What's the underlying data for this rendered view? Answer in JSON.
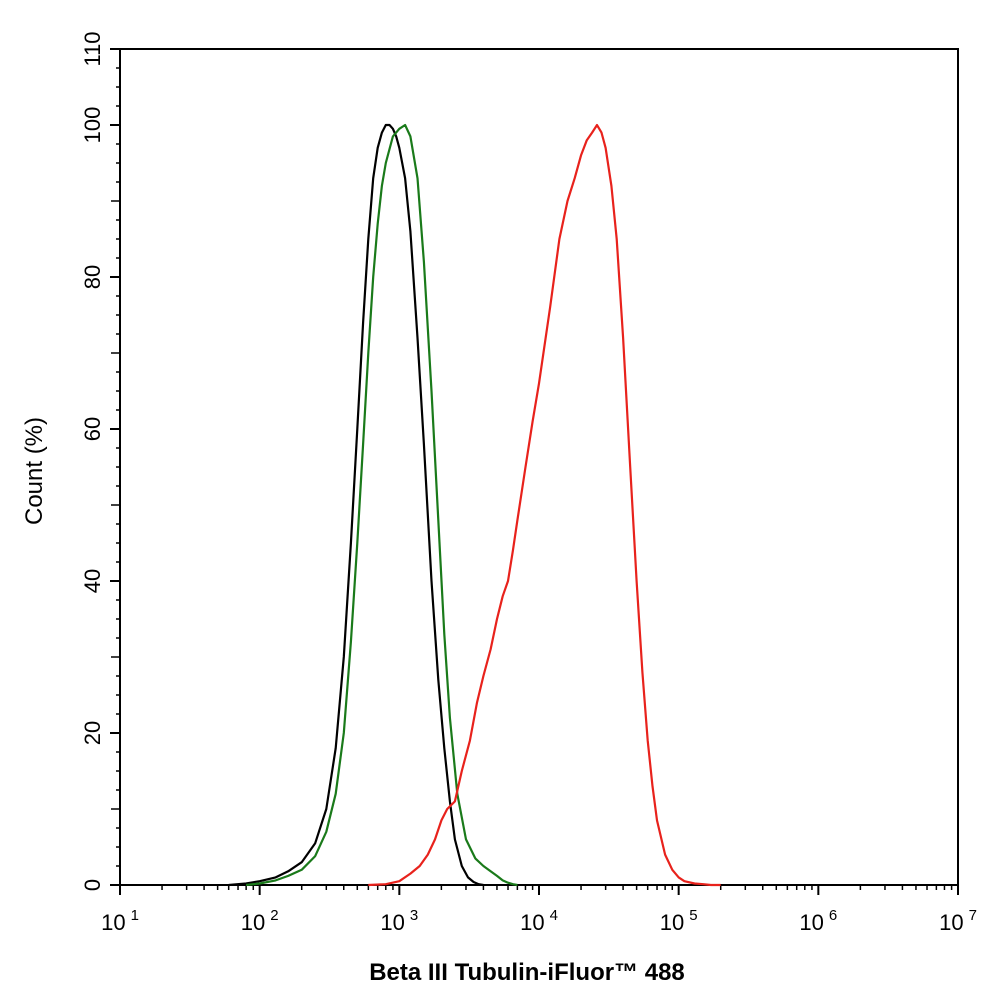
{
  "chart_data": {
    "type": "line",
    "xlabel": "Beta III Tubulin-iFluor™ 488",
    "ylabel": "Count  (%)",
    "x_scale": "log",
    "xlim": [
      10,
      10000000
    ],
    "ylim": [
      0,
      110
    ],
    "x_tick_labels": [
      {
        "base": "10",
        "exp": "1"
      },
      {
        "base": "10",
        "exp": "2"
      },
      {
        "base": "10",
        "exp": "3"
      },
      {
        "base": "10",
        "exp": "4"
      },
      {
        "base": "10",
        "exp": "5"
      },
      {
        "base": "10",
        "exp": "6"
      },
      {
        "base": "10",
        "exp": "7"
      }
    ],
    "y_ticks": [
      0,
      20,
      40,
      60,
      80,
      100,
      110
    ],
    "grid": false,
    "legend": "none",
    "series": [
      {
        "color": "#000000",
        "x": [
          60,
          80,
          100,
          130,
          160,
          200,
          250,
          300,
          350,
          400,
          450,
          500,
          550,
          600,
          650,
          700,
          750,
          800,
          850,
          900,
          950,
          1000,
          1100,
          1200,
          1350,
          1500,
          1700,
          1900,
          2100,
          2300,
          2500,
          2800,
          3100,
          3400,
          3700,
          4000
        ],
        "y": [
          0,
          0.2,
          0.5,
          1,
          1.8,
          3,
          5.5,
          10,
          18,
          30,
          45,
          60,
          74,
          85,
          93,
          97,
          99,
          100,
          100,
          99.5,
          98.5,
          97,
          93,
          86,
          72,
          58,
          40,
          27,
          18,
          11,
          6,
          2.5,
          1,
          0.4,
          0.1,
          0
        ]
      },
      {
        "color": "#1a7a1a",
        "x": [
          80,
          100,
          130,
          160,
          200,
          250,
          300,
          350,
          400,
          450,
          500,
          550,
          600,
          650,
          700,
          750,
          800,
          900,
          1000,
          1100,
          1200,
          1350,
          1500,
          1700,
          1900,
          2100,
          2300,
          2600,
          3000,
          3500,
          4000,
          4500,
          5000,
          5500,
          6000,
          6500,
          7000
        ],
        "y": [
          0,
          0.2,
          0.6,
          1.2,
          2,
          3.8,
          7,
          12,
          20,
          32,
          45,
          58,
          70,
          80,
          87,
          92,
          95,
          98.5,
          99.5,
          100,
          98.5,
          93,
          82,
          65,
          48,
          33,
          22,
          12,
          6,
          3.5,
          2.5,
          1.8,
          1.2,
          0.6,
          0.3,
          0.1,
          0
        ]
      },
      {
        "color": "#e8221c",
        "x": [
          600,
          800,
          1000,
          1200,
          1400,
          1600,
          1800,
          2000,
          2200,
          2500,
          2800,
          3200,
          3600,
          4000,
          4500,
          5000,
          5500,
          6000,
          6500,
          7000,
          8000,
          9000,
          10000,
          12000,
          14000,
          16000,
          18000,
          20000,
          22000,
          24000,
          26000,
          28000,
          30000,
          33000,
          36000,
          40000,
          45000,
          50000,
          55000,
          60000,
          65000,
          70000,
          80000,
          90000,
          100000,
          110000,
          130000,
          150000,
          170000,
          200000
        ],
        "y": [
          0,
          0.1,
          0.5,
          1.5,
          2.5,
          4,
          6,
          8.5,
          10,
          11,
          15,
          19,
          24,
          27.5,
          31,
          35,
          38,
          40,
          44,
          48,
          55,
          61,
          66,
          76,
          85,
          90,
          93,
          96,
          98,
          99,
          100,
          99,
          97,
          92,
          85,
          72,
          55,
          40,
          28,
          19,
          13,
          8.5,
          4,
          2,
          1,
          0.5,
          0.2,
          0.1,
          0,
          0
        ]
      }
    ]
  }
}
